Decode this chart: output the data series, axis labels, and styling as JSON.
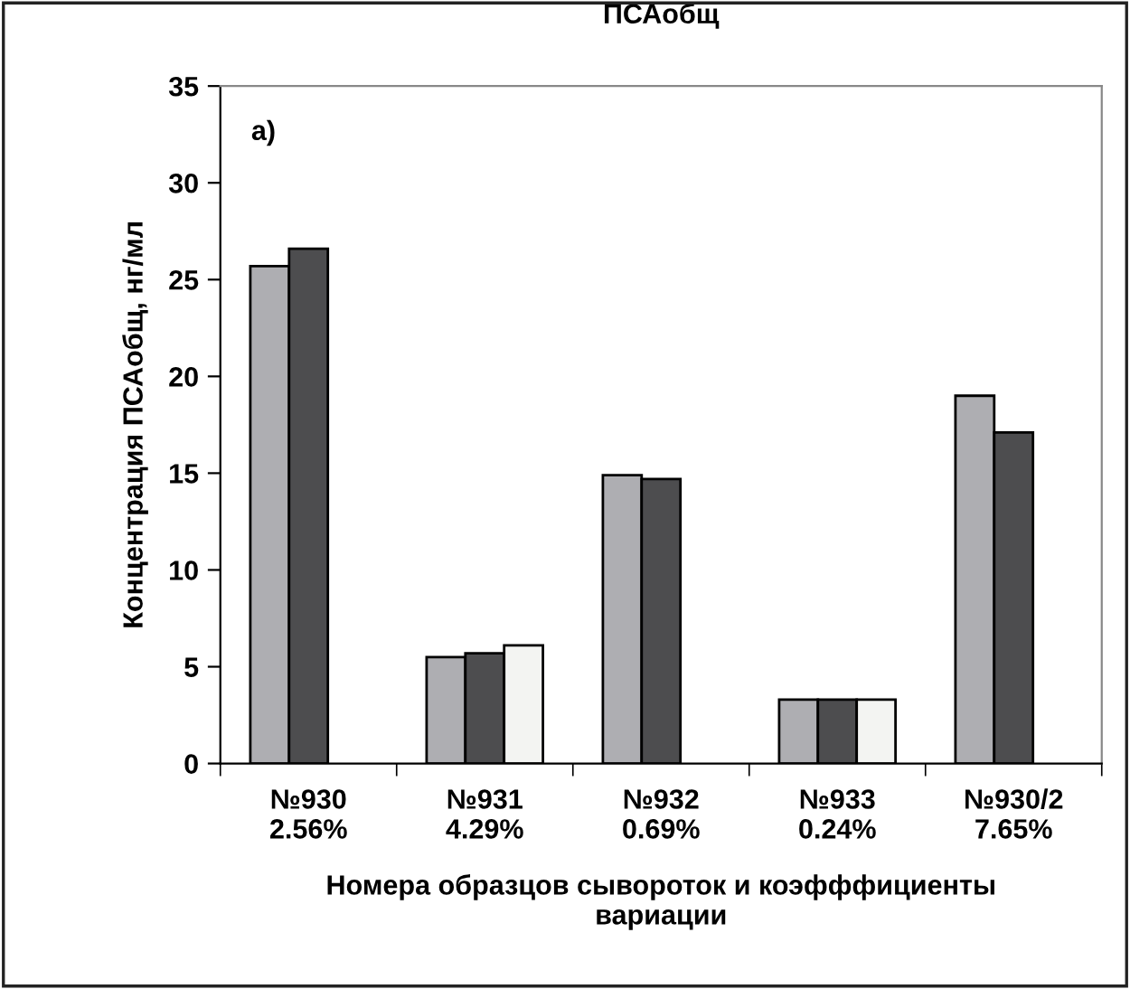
{
  "chart_data": {
    "type": "bar",
    "title": "ПСАобщ",
    "xlabel": "Номера образцов сывороток и коэфффициенты\nвариации",
    "ylabel": "Концентрация ПСАобщ, нг/мл",
    "categories": [
      "№930\n2.56%",
      "№931\n4.29%",
      "№932\n0.69%",
      "№933\n0.24%",
      "№930/2\n7.65%"
    ],
    "series": [
      {
        "color": "#aeaeb2",
        "values": [
          25.7,
          5.5,
          14.9,
          3.3,
          19.0
        ]
      },
      {
        "color": "#4d4d4f",
        "values": [
          26.6,
          5.7,
          14.7,
          3.3,
          17.1
        ]
      },
      {
        "color": "#f3f4f2",
        "values": [
          null,
          6.1,
          null,
          3.3,
          null
        ]
      }
    ],
    "ylim": [
      0,
      35
    ],
    "yticks": [
      0,
      5,
      10,
      15,
      20,
      25,
      30,
      35
    ],
    "annotations": [
      "a)"
    ],
    "grid": false,
    "legend": false
  }
}
